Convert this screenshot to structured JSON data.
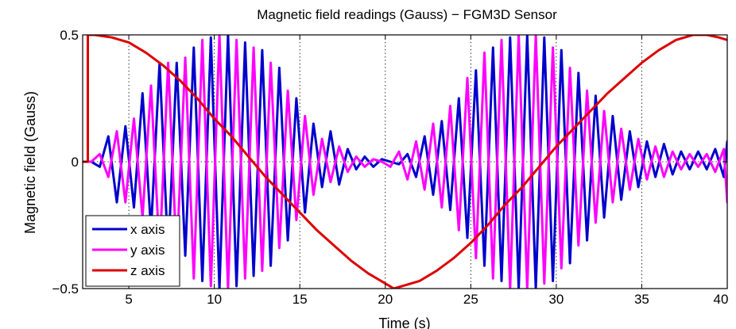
{
  "chart_data": {
    "type": "line",
    "title": "Magnetic field readings (Gauss) − FGM3D Sensor",
    "xlabel": "Time (s)",
    "ylabel": "Magnetic field (Gauss)",
    "xlim": [
      2.3,
      40
    ],
    "ylim": [
      -0.5,
      0.5
    ],
    "xticks": [
      5,
      10,
      15,
      20,
      25,
      30,
      35,
      40
    ],
    "xtick_labels": [
      "5",
      "10",
      "15",
      "20",
      "25",
      "30",
      "35",
      "40"
    ],
    "yticks": [
      -0.5,
      0,
      0.5
    ],
    "ytick_labels": [
      "−0.5",
      "0",
      "0.5"
    ],
    "grid": true,
    "legend_position": "bottom-left",
    "series": [
      {
        "name": "x axis",
        "color": "#0000cc",
        "x": [
          2.3,
          2.8,
          3.3,
          3.8,
          4.3,
          4.8,
          5.3,
          5.8,
          6.3,
          6.8,
          7.3,
          7.8,
          8.3,
          8.8,
          9.3,
          9.8,
          10.3,
          10.8,
          11.3,
          11.8,
          12.3,
          12.8,
          13.3,
          13.8,
          14.3,
          14.8,
          15.3,
          15.8,
          16.3,
          16.8,
          17.3,
          17.8,
          18.3,
          18.8,
          19.3,
          19.8,
          20.3,
          20.8,
          21.3,
          21.8,
          22.3,
          22.8,
          23.3,
          23.8,
          24.3,
          24.8,
          25.3,
          25.8,
          26.3,
          26.8,
          27.3,
          27.8,
          28.3,
          28.8,
          29.3,
          29.8,
          30.3,
          30.8,
          31.3,
          31.8,
          32.3,
          32.8,
          33.3,
          33.8,
          34.3,
          34.8,
          35.3,
          35.8,
          36.3,
          36.8,
          37.3,
          37.8,
          38.3,
          38.8,
          39.3,
          39.8,
          40
        ],
        "y": [
          0.0,
          0.0,
          -0.02,
          0.1,
          -0.16,
          0.14,
          -0.18,
          0.27,
          -0.27,
          0.39,
          -0.37,
          0.39,
          -0.37,
          0.45,
          -0.47,
          0.49,
          -0.5,
          0.5,
          -0.49,
          0.47,
          -0.45,
          0.44,
          -0.41,
          0.37,
          -0.31,
          0.25,
          -0.2,
          0.15,
          -0.1,
          0.12,
          -0.09,
          0.05,
          -0.03,
          0.02,
          -0.02,
          0.01,
          0.0,
          -0.01,
          0.03,
          -0.06,
          0.1,
          -0.13,
          0.16,
          -0.19,
          0.25,
          -0.3,
          0.36,
          -0.41,
          0.45,
          -0.47,
          0.49,
          -0.5,
          0.5,
          -0.5,
          0.49,
          -0.47,
          0.44,
          -0.4,
          0.35,
          -0.31,
          0.26,
          -0.22,
          0.18,
          -0.15,
          0.12,
          -0.1,
          0.08,
          -0.06,
          0.07,
          -0.05,
          0.04,
          -0.03,
          0.04,
          -0.03,
          0.05,
          -0.06,
          0.08
        ]
      },
      {
        "name": "y axis",
        "color": "#ff00ff",
        "x": [
          2.3,
          2.8,
          3.3,
          3.8,
          4.3,
          4.8,
          5.3,
          5.8,
          6.3,
          6.8,
          7.3,
          7.8,
          8.3,
          8.8,
          9.3,
          9.8,
          10.3,
          10.8,
          11.3,
          11.8,
          12.3,
          12.8,
          13.3,
          13.8,
          14.3,
          14.8,
          15.3,
          15.8,
          16.3,
          16.8,
          17.3,
          17.8,
          18.3,
          18.8,
          19.3,
          19.8,
          20.3,
          20.8,
          21.3,
          21.8,
          22.3,
          22.8,
          23.3,
          23.8,
          24.3,
          24.8,
          25.3,
          25.8,
          26.3,
          26.8,
          27.3,
          27.8,
          28.3,
          28.8,
          29.3,
          29.8,
          30.3,
          30.8,
          31.3,
          31.8,
          32.3,
          32.8,
          33.3,
          33.8,
          34.3,
          34.8,
          35.3,
          35.8,
          36.3,
          36.8,
          37.3,
          37.8,
          38.3,
          38.8,
          39.3,
          39.8,
          40
        ],
        "y": [
          0.0,
          0.0,
          0.03,
          -0.06,
          0.12,
          -0.16,
          0.17,
          -0.22,
          0.3,
          -0.36,
          0.39,
          -0.38,
          0.41,
          -0.46,
          0.48,
          -0.49,
          0.5,
          -0.5,
          0.48,
          -0.46,
          0.45,
          -0.43,
          0.39,
          -0.34,
          0.28,
          -0.23,
          0.18,
          -0.13,
          0.09,
          -0.08,
          0.06,
          -0.04,
          0.02,
          -0.02,
          0.01,
          0.0,
          -0.02,
          0.04,
          -0.07,
          0.08,
          -0.11,
          0.15,
          -0.18,
          0.22,
          -0.27,
          0.33,
          -0.38,
          0.43,
          -0.46,
          0.48,
          -0.5,
          0.5,
          -0.5,
          0.5,
          -0.48,
          0.45,
          -0.42,
          0.37,
          -0.33,
          0.28,
          -0.24,
          0.2,
          -0.16,
          0.13,
          -0.11,
          0.09,
          -0.07,
          0.06,
          -0.06,
          0.04,
          -0.03,
          0.03,
          -0.02,
          0.03,
          -0.04,
          0.05,
          -0.16
        ]
      },
      {
        "name": "z axis",
        "color": "#dd0000",
        "x": [
          2.3,
          2.6,
          2.6,
          3,
          4,
          5,
          6,
          7,
          8,
          9,
          10,
          11,
          12,
          13,
          14,
          15,
          16,
          17,
          18,
          19,
          20,
          20.5,
          21,
          22,
          23,
          24,
          25,
          26,
          27,
          28,
          29,
          30,
          31,
          32,
          33,
          34,
          35,
          36,
          37,
          38,
          38.8,
          39.5,
          40
        ],
        "y": [
          0.0,
          0.0,
          0.5,
          0.5,
          0.49,
          0.47,
          0.43,
          0.38,
          0.32,
          0.25,
          0.17,
          0.1,
          0.02,
          -0.06,
          -0.13,
          -0.2,
          -0.27,
          -0.33,
          -0.39,
          -0.44,
          -0.48,
          -0.5,
          -0.49,
          -0.47,
          -0.43,
          -0.38,
          -0.32,
          -0.25,
          -0.17,
          -0.1,
          -0.02,
          0.06,
          0.13,
          0.2,
          0.27,
          0.33,
          0.39,
          0.44,
          0.48,
          0.5,
          0.5,
          0.49,
          0.48
        ]
      }
    ]
  }
}
